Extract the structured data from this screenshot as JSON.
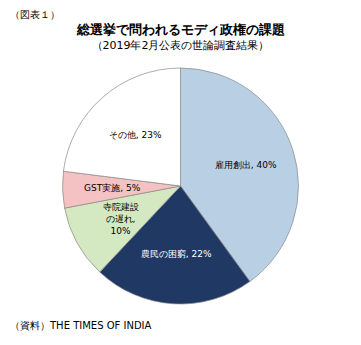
{
  "chart_data": {
    "type": "pie",
    "title": "総選挙で問われるモディ政権の課題",
    "subtitle": "（2019年2月公表の世論調査結果）",
    "annotations": [
      "（図表１）",
      "（資料）THE TIMES OF INDIA"
    ],
    "values": [
      40,
      22,
      10,
      5,
      23
    ],
    "value_labels": [
      "雇用創出, 40%",
      "農民の困窮, 22%",
      "寺院建設\nの遅れ,\n10%",
      "GST実施, 5%",
      "その他, 23%"
    ],
    "colors": [
      "#b8cfe4",
      "#1f3864",
      "#d4e8c2",
      "#f4c2c2",
      "#ffffff"
    ]
  }
}
